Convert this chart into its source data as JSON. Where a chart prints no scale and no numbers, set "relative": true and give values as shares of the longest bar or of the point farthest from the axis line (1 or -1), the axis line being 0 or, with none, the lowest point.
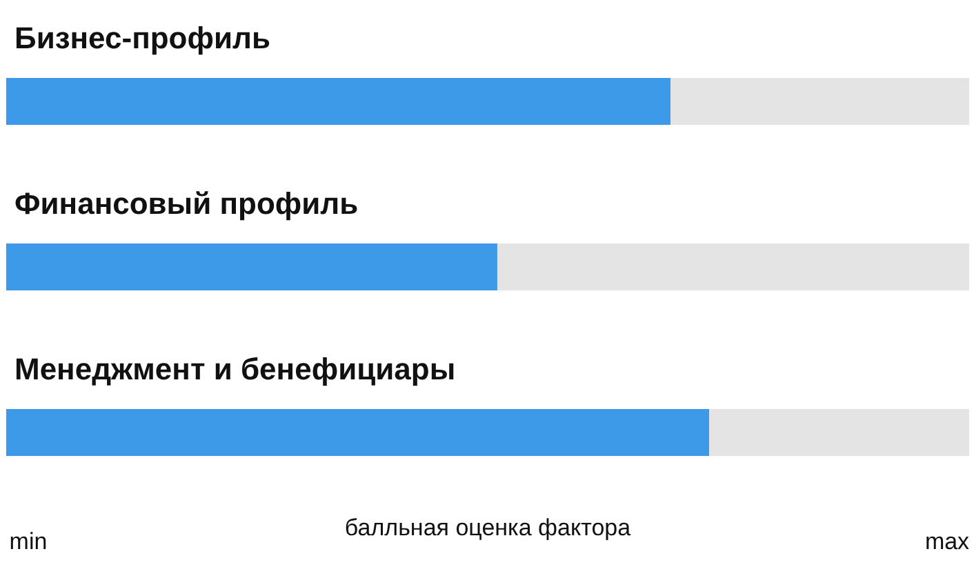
{
  "chart_data": {
    "type": "bar",
    "orientation": "horizontal",
    "stacked": true,
    "relative": true,
    "categories": [
      "Бизнес-профиль",
      "Финансовый профиль",
      "Менеджмент и бенефициары"
    ],
    "series": [
      {
        "color": "#3d9ae8",
        "values": [
          0.69,
          0.51,
          0.73
        ]
      },
      {
        "color": "#e4e4e4",
        "values": [
          0.31,
          0.49,
          0.27
        ]
      }
    ],
    "xlabel": "балльная оценка фактора",
    "annotations": [
      "min",
      "max"
    ]
  }
}
